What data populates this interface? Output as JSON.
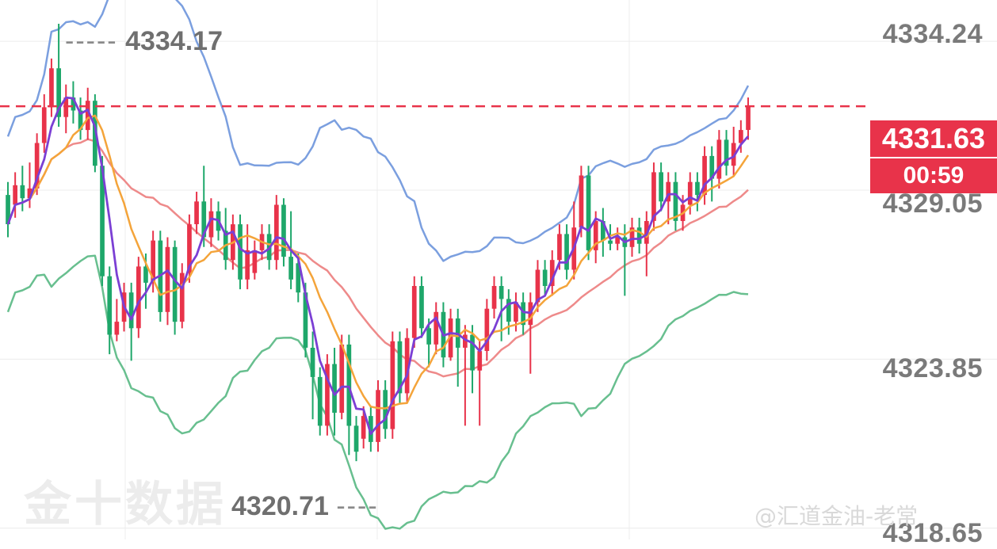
{
  "chart_data": {
    "type": "candlestick",
    "y_axis_ticks": [
      "4334.24",
      "4329.05",
      "4323.85",
      "4318.65"
    ],
    "y_axis_values": [
      4334.24,
      4329.05,
      4323.85,
      4318.65
    ],
    "ylim": [
      4318.3,
      4334.9
    ],
    "grid": true,
    "current_price": "4331.63",
    "current_price_value": 4331.63,
    "countdown": "00:59",
    "high_marker": "4334.17",
    "low_marker": "4320.71",
    "colors": {
      "up": "#e8334a",
      "down": "#1ea76a",
      "ma_fast": "#7b3fd4",
      "ma_mid": "#f4a43a",
      "ma_slow": "#ee8a8a",
      "boll_upper": "#7b9fdf",
      "boll_lower": "#68bf8f",
      "price_line": "#e8334a"
    },
    "candles": [
      [
        4328.9,
        4328.0,
        4329.3,
        4327.6
      ],
      [
        4328.6,
        4329.2,
        4329.6,
        4328.2
      ],
      [
        4329.2,
        4328.8,
        4329.8,
        4328.4
      ],
      [
        4328.8,
        4329.1,
        4329.9,
        4328.5
      ],
      [
        4329.1,
        4330.5,
        4330.8,
        4328.9
      ],
      [
        4330.5,
        4331.6,
        4332.0,
        4330.2
      ],
      [
        4331.6,
        4332.8,
        4333.1,
        4331.3
      ],
      [
        4332.8,
        4331.3,
        4334.17,
        4331.0
      ],
      [
        4331.3,
        4331.9,
        4332.3,
        4330.8
      ],
      [
        4331.9,
        4331.5,
        4332.4,
        4331.1
      ],
      [
        4331.5,
        4330.9,
        4331.9,
        4330.6
      ],
      [
        4330.9,
        4331.8,
        4332.2,
        4330.6
      ],
      [
        4331.8,
        4329.8,
        4332.0,
        4329.6
      ],
      [
        4329.8,
        4326.4,
        4330.1,
        4326.1
      ],
      [
        4326.4,
        4324.6,
        4326.7,
        4324.0
      ],
      [
        4324.6,
        4325.0,
        4325.7,
        4324.4
      ],
      [
        4325.0,
        4325.9,
        4326.2,
        4324.7
      ],
      [
        4325.9,
        4324.8,
        4326.2,
        4323.8
      ],
      [
        4324.8,
        4326.7,
        4327.0,
        4324.5
      ],
      [
        4326.7,
        4326.2,
        4327.1,
        4325.4
      ],
      [
        4326.2,
        4327.5,
        4327.8,
        4325.9
      ],
      [
        4327.5,
        4325.3,
        4327.8,
        4325.0
      ],
      [
        4325.3,
        4327.3,
        4327.6,
        4324.9
      ],
      [
        4327.3,
        4325.0,
        4327.5,
        4324.6
      ],
      [
        4325.0,
        4326.5,
        4326.8,
        4324.8
      ],
      [
        4326.5,
        4328.0,
        4328.3,
        4326.2
      ],
      [
        4328.0,
        4328.7,
        4329.0,
        4327.7
      ],
      [
        4328.7,
        4327.6,
        4329.8,
        4327.3
      ],
      [
        4327.6,
        4328.4,
        4328.8,
        4327.3
      ],
      [
        4328.4,
        4327.8,
        4328.7,
        4327.5
      ],
      [
        4327.8,
        4326.9,
        4328.5,
        4326.6
      ],
      [
        4326.9,
        4328.0,
        4328.3,
        4326.6
      ],
      [
        4328.0,
        4326.3,
        4328.3,
        4326.0
      ],
      [
        4326.3,
        4327.2,
        4328.0,
        4326.0
      ],
      [
        4326.5,
        4327.2,
        4327.5,
        4326.3
      ],
      [
        4327.2,
        4327.7,
        4328.0,
        4326.9
      ],
      [
        4327.7,
        4326.9,
        4328.0,
        4326.6
      ],
      [
        4326.9,
        4328.6,
        4328.9,
        4326.6
      ],
      [
        4328.6,
        4327.0,
        4328.8,
        4326.7
      ],
      [
        4327.0,
        4326.3,
        4328.4,
        4326.0
      ],
      [
        4326.8,
        4325.9,
        4327.1,
        4325.6
      ],
      [
        4325.9,
        4324.2,
        4326.2,
        4323.9
      ],
      [
        4324.2,
        4323.3,
        4324.7,
        4322.0
      ],
      [
        4323.3,
        4321.8,
        4323.6,
        4321.5
      ],
      [
        4321.8,
        4323.7,
        4324.0,
        4321.5
      ],
      [
        4323.7,
        4322.2,
        4324.2,
        4321.5
      ],
      [
        4322.2,
        4324.3,
        4324.6,
        4322.0
      ],
      [
        4324.3,
        4321.8,
        4324.6,
        4320.9
      ],
      [
        4321.8,
        4321.0,
        4322.1,
        4320.71
      ],
      [
        4321.4,
        4322.1,
        4322.4,
        4321.1
      ],
      [
        4322.1,
        4321.3,
        4322.4,
        4321.0
      ],
      [
        4321.3,
        4322.9,
        4323.2,
        4321.0
      ],
      [
        4322.9,
        4321.7,
        4323.2,
        4321.4
      ],
      [
        4321.7,
        4324.4,
        4324.7,
        4321.4
      ],
      [
        4324.4,
        4322.8,
        4324.7,
        4322.5
      ],
      [
        4322.8,
        4324.5,
        4324.8,
        4322.5
      ],
      [
        4324.5,
        4326.1,
        4326.4,
        4324.2
      ],
      [
        4326.1,
        4324.8,
        4326.4,
        4324.5
      ],
      [
        4324.8,
        4324.3,
        4325.1,
        4323.6
      ],
      [
        4324.3,
        4325.3,
        4325.6,
        4324.0
      ],
      [
        4325.3,
        4323.9,
        4325.6,
        4323.6
      ],
      [
        4323.9,
        4325.1,
        4325.4,
        4323.8
      ],
      [
        4325.1,
        4324.2,
        4325.4,
        4323.0
      ],
      [
        4324.2,
        4324.6,
        4324.9,
        4321.8
      ],
      [
        4324.6,
        4323.5,
        4324.9,
        4322.8
      ],
      [
        4323.5,
        4324.1,
        4324.4,
        4321.8
      ],
      [
        4324.1,
        4325.4,
        4325.7,
        4323.8
      ],
      [
        4325.4,
        4326.1,
        4326.4,
        4325.1
      ],
      [
        4326.1,
        4325.7,
        4326.4,
        4324.4
      ],
      [
        4325.7,
        4325.0,
        4326.0,
        4324.6
      ],
      [
        4325.0,
        4325.6,
        4325.9,
        4324.7
      ],
      [
        4325.6,
        4324.9,
        4325.9,
        4324.6
      ],
      [
        4324.9,
        4325.6,
        4325.9,
        4323.4
      ],
      [
        4325.6,
        4326.6,
        4326.9,
        4325.3
      ],
      [
        4326.6,
        4326.1,
        4326.9,
        4325.8
      ],
      [
        4326.1,
        4326.9,
        4327.2,
        4325.8
      ],
      [
        4326.9,
        4327.7,
        4328.0,
        4326.6
      ],
      [
        4327.7,
        4326.6,
        4328.0,
        4326.3
      ],
      [
        4326.6,
        4327.9,
        4328.7,
        4326.3
      ],
      [
        4327.9,
        4329.5,
        4329.8,
        4327.6
      ],
      [
        4329.5,
        4327.2,
        4329.8,
        4326.9
      ],
      [
        4327.2,
        4328.1,
        4328.4,
        4326.8
      ],
      [
        4328.1,
        4327.5,
        4328.5,
        4327.0
      ],
      [
        4327.5,
        4327.4,
        4328.0,
        4327.2
      ],
      [
        4327.4,
        4327.6,
        4327.9,
        4327.2
      ],
      [
        4327.6,
        4327.3,
        4328.0,
        4325.8
      ],
      [
        4327.3,
        4327.9,
        4328.2,
        4327.0
      ],
      [
        4327.9,
        4327.4,
        4328.2,
        4327.1
      ],
      [
        4327.4,
        4328.1,
        4328.4,
        4326.4
      ],
      [
        4328.1,
        4329.6,
        4329.9,
        4327.8
      ],
      [
        4329.6,
        4328.7,
        4329.9,
        4328.4
      ],
      [
        4328.7,
        4329.3,
        4329.6,
        4328.0
      ],
      [
        4329.3,
        4328.1,
        4329.6,
        4327.8
      ],
      [
        4328.1,
        4328.6,
        4328.9,
        4327.8
      ],
      [
        4328.6,
        4329.3,
        4329.6,
        4328.3
      ],
      [
        4329.3,
        4328.9,
        4329.6,
        4328.4
      ],
      [
        4328.9,
        4330.1,
        4330.4,
        4328.6
      ],
      [
        4330.1,
        4329.4,
        4330.4,
        4328.7
      ],
      [
        4329.4,
        4330.6,
        4330.9,
        4329.1
      ],
      [
        4330.6,
        4329.8,
        4330.9,
        4329.5
      ],
      [
        4329.8,
        4330.5,
        4331.0,
        4329.5
      ],
      [
        4330.5,
        4330.9,
        4331.2,
        4330.2
      ],
      [
        4330.9,
        4331.63,
        4331.9,
        4330.6
      ]
    ]
  },
  "watermark": {
    "brand": "金十数据",
    "weibo": "@汇道金油-老常"
  }
}
